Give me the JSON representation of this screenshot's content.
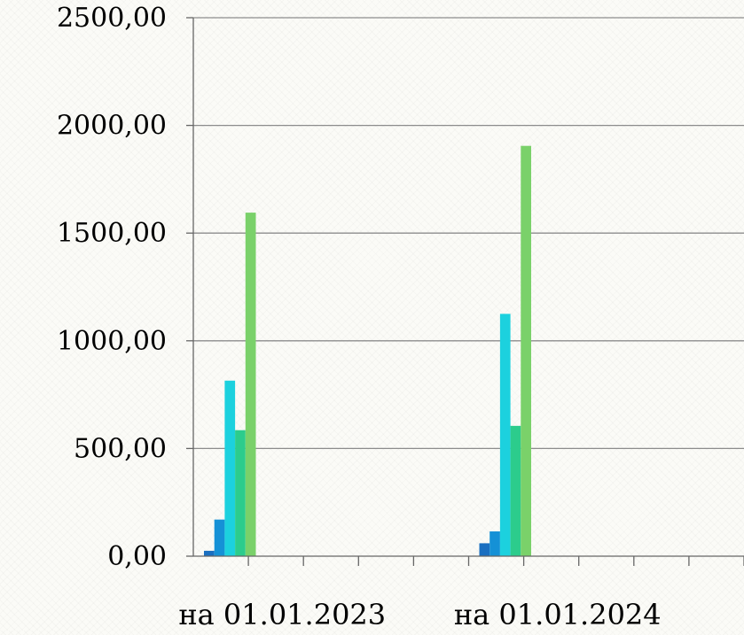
{
  "chart_data": {
    "type": "bar",
    "categories": [
      "на 01.01.2023",
      "на 01.01.2024"
    ],
    "series": [
      {
        "values": [
          25,
          60
        ],
        "color": "#1a6fc0"
      },
      {
        "values": [
          170,
          115
        ],
        "color": "#1591d6"
      },
      {
        "values": [
          815,
          1125
        ],
        "color": "#1cd1de"
      },
      {
        "values": [
          585,
          605
        ],
        "color": "#2ccc8c"
      },
      {
        "values": [
          1595,
          1905
        ],
        "color": "#7ad16a"
      }
    ],
    "y_ticks": [
      "0,00",
      "500,00",
      "1000,00",
      "1500,00",
      "2000,00",
      "2500,00"
    ],
    "ylim": [
      0,
      2500
    ],
    "grid": true,
    "legend": "none",
    "title": "",
    "xlabel": "",
    "ylabel": ""
  }
}
